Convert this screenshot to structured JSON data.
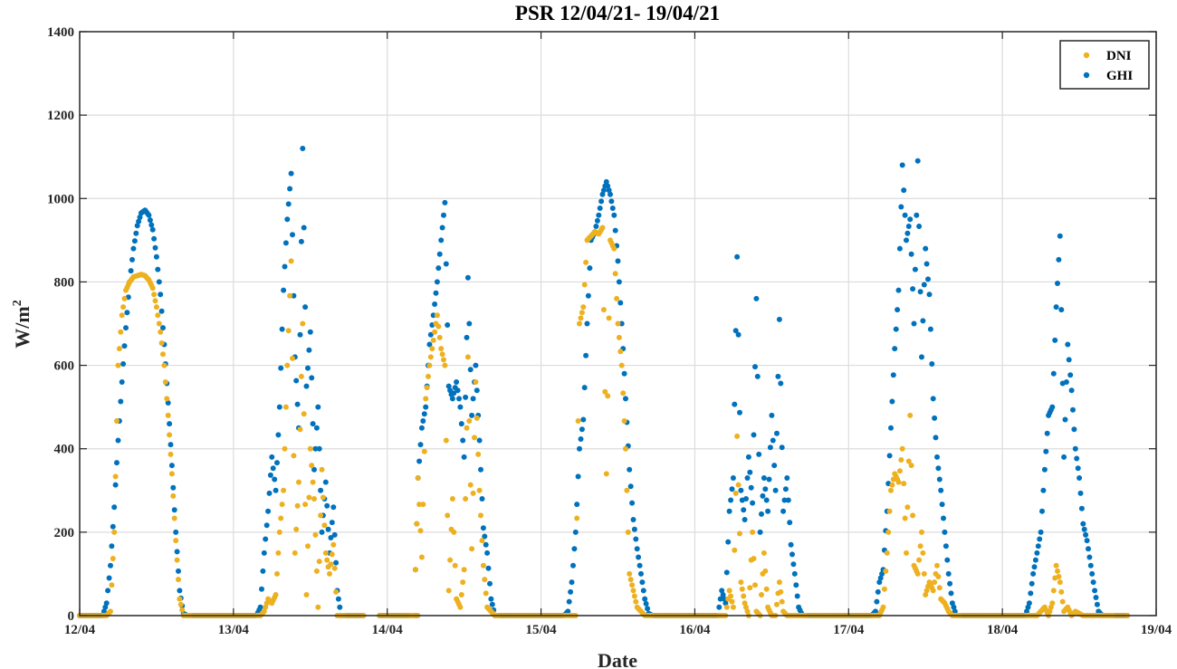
{
  "chart_data": {
    "type": "scatter",
    "title": "PSR 12/04/21- 19/04/21",
    "xlabel": "Date",
    "ylabel": "W/m",
    "ylabel_sup": "2",
    "xlim": [
      12,
      19
    ],
    "ylim": [
      0,
      1400
    ],
    "yticks": [
      0,
      200,
      400,
      600,
      800,
      1000,
      1200,
      1400
    ],
    "xticks": [
      12,
      13,
      14,
      15,
      16,
      17,
      18,
      19
    ],
    "xtick_labels": [
      "12/04",
      "13/04",
      "14/04",
      "15/04",
      "16/04",
      "17/04",
      "18/04",
      "19/04"
    ],
    "grid": true,
    "legend": {
      "placement": "top-right",
      "entries": [
        "DNI",
        "GHI"
      ]
    },
    "colors": {
      "DNI": "#EDB120",
      "GHI": "#0072BD"
    },
    "day_start": [
      12,
      13,
      14,
      15,
      16,
      17,
      18
    ],
    "time_of_day": [
      0.15,
      0.175,
      0.2,
      0.225,
      0.25,
      0.275,
      0.3,
      0.325,
      0.35,
      0.375,
      0.4,
      0.425,
      0.45,
      0.475,
      0.5,
      0.525,
      0.55,
      0.575,
      0.6,
      0.625,
      0.65,
      0.675,
      0.7,
      0.725
    ],
    "series": [
      {
        "name": "DNI",
        "days": [
          [
            0,
            0,
            10,
            200,
            600,
            720,
            780,
            800,
            812,
            815,
            818,
            815,
            805,
            785,
            740,
            680,
            600,
            480,
            340,
            180,
            40,
            0,
            0,
            0
          ],
          [
            0,
            0,
            10,
            40,
            30,
            50,
            200,
            300,
            600,
            850,
            150,
            320,
            700,
            50,
            400,
            280,
            20,
            350,
            150,
            100,
            170,
            0,
            0,
            0
          ],
          [
            0,
            0,
            330,
            140,
            520,
            600,
            660,
            720,
            640,
            600,
            60,
            280,
            40,
            20,
            110,
            620,
            160,
            560,
            300,
            120,
            20,
            10,
            0,
            0
          ],
          [
            0,
            0,
            0,
            0,
            700,
            740,
            900,
            910,
            920,
            915,
            930,
            340,
            900,
            880,
            700,
            600,
            400,
            100,
            60,
            20,
            10,
            0,
            0,
            0
          ],
          [
            0,
            0,
            0,
            60,
            20,
            430,
            80,
            30,
            0,
            200,
            10,
            0,
            150,
            20,
            0,
            0,
            80,
            10,
            0,
            0,
            0,
            0,
            0,
            0
          ],
          [
            0,
            0,
            0,
            20,
            150,
            300,
            340,
            320,
            400,
            150,
            480,
            120,
            100,
            200,
            50,
            80,
            60,
            120,
            40,
            30,
            10,
            0,
            0,
            0
          ],
          [
            0,
            0,
            0,
            0,
            10,
            20,
            0,
            30,
            120,
            80,
            10,
            20,
            0,
            10,
            5,
            0,
            0,
            0,
            0,
            0,
            0,
            0,
            0,
            0
          ]
        ]
      },
      {
        "name": "GHI",
        "days": [
          [
            0,
            30,
            120,
            260,
            420,
            560,
            690,
            800,
            880,
            935,
            965,
            972,
            960,
            925,
            860,
            770,
            650,
            510,
            360,
            200,
            60,
            5,
            0,
            0
          ],
          [
            0,
            20,
            150,
            250,
            380,
            300,
            500,
            780,
            950,
            1060,
            620,
            450,
            1120,
            550,
            680,
            350,
            500,
            200,
            320,
            150,
            260,
            60,
            0,
            0
          ],
          [
            0,
            0,
            330,
            450,
            500,
            650,
            720,
            800,
            900,
            990,
            550,
            520,
            560,
            500,
            380,
            810,
            480,
            600,
            420,
            210,
            150,
            40,
            0,
            0
          ],
          [
            0,
            10,
            80,
            200,
            400,
            470,
            700,
            900,
            920,
            960,
            1010,
            1040,
            1010,
            960,
            850,
            700,
            520,
            350,
            230,
            160,
            100,
            40,
            5,
            0
          ],
          [
            0,
            60,
            30,
            250,
            330,
            860,
            300,
            230,
            380,
            270,
            760,
            200,
            330,
            250,
            480,
            300,
            710,
            250,
            330,
            170,
            100,
            20,
            0,
            0
          ],
          [
            0,
            10,
            80,
            110,
            250,
            450,
            640,
            780,
            1080,
            900,
            950,
            700,
            1090,
            620,
            880,
            770,
            520,
            380,
            300,
            200,
            100,
            30,
            0,
            0
          ],
          [
            0,
            30,
            100,
            150,
            200,
            350,
            480,
            500,
            740,
            910,
            380,
            650,
            540,
            400,
            330,
            220,
            180,
            120,
            60,
            10,
            0,
            0,
            0,
            0
          ]
        ]
      }
    ],
    "zero_ranges": [
      [
        12.0,
        12.15
      ],
      [
        12.725,
        13.15
      ],
      [
        13.725,
        13.85
      ],
      [
        13.95,
        14.2
      ],
      [
        14.725,
        15.15
      ],
      [
        15.725,
        16.15
      ],
      [
        16.725,
        17.15
      ],
      [
        17.725,
        18.15
      ],
      [
        18.725,
        18.82
      ]
    ]
  }
}
